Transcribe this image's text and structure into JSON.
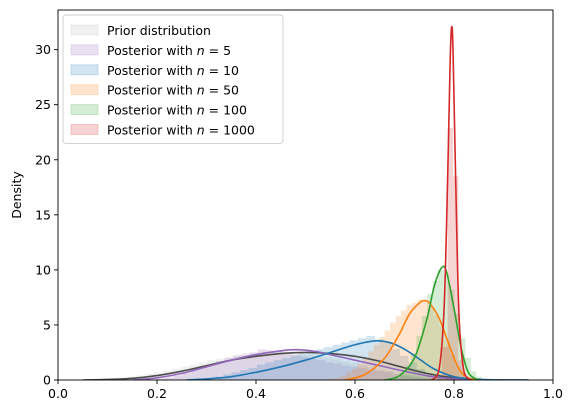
{
  "chart_data": {
    "type": "area",
    "title": "",
    "xlabel": "",
    "ylabel": "Density",
    "xlim": [
      0.0,
      1.0
    ],
    "ylim": [
      0,
      33.6
    ],
    "xticks": [
      0.0,
      0.2,
      0.4,
      0.6,
      0.8,
      1.0
    ],
    "xtick_labels": [
      "0.0",
      "0.2",
      "0.4",
      "0.6",
      "0.8",
      "1.0"
    ],
    "yticks": [
      0,
      5,
      10,
      15,
      20,
      25,
      30
    ],
    "ytick_labels": [
      "0",
      "5",
      "10",
      "15",
      "20",
      "25",
      "30"
    ],
    "grid": false,
    "legend_position": "top-left",
    "series": [
      {
        "name": "Prior distribution",
        "color": "#4d4d4d",
        "hist_color": "#b3b3b3",
        "histogram": {
          "start": 0.05,
          "width": 0.018,
          "values": [
            0.03,
            0.06,
            0.1,
            0.15,
            0.22,
            0.3,
            0.42,
            0.55,
            0.7,
            0.85,
            1.0,
            1.2,
            1.4,
            1.6,
            1.8,
            1.95,
            2.1,
            2.3,
            2.45,
            2.5,
            2.6,
            2.55,
            2.6,
            2.5,
            2.4,
            2.3,
            2.2,
            2.05,
            1.9,
            1.7,
            1.55,
            1.35,
            1.15,
            0.95,
            0.8,
            0.6,
            0.45,
            0.3,
            0.2,
            0.12,
            0.08,
            0.05,
            0.03,
            0.02,
            0.01,
            0.01,
            0.01,
            0.0,
            0.0
          ]
        },
        "kde": {
          "x": [
            0.05,
            0.1,
            0.15,
            0.2,
            0.25,
            0.3,
            0.35,
            0.4,
            0.45,
            0.5,
            0.55,
            0.6,
            0.65,
            0.7,
            0.75,
            0.8,
            0.85,
            0.9,
            0.95
          ],
          "y": [
            0.0,
            0.05,
            0.15,
            0.4,
            0.8,
            1.3,
            1.8,
            2.15,
            2.4,
            2.5,
            2.4,
            2.15,
            1.7,
            1.1,
            0.55,
            0.2,
            0.05,
            0.01,
            0.0
          ]
        }
      },
      {
        "name": "Posterior with n = 5",
        "name_prefix": "Posterior with ",
        "name_var": "n",
        "name_suffix": " = 5",
        "color": "#9467bd",
        "hist_color": "#9467bd",
        "histogram": {
          "start": 0.2,
          "width": 0.017,
          "values": [
            0.1,
            0.2,
            0.4,
            0.6,
            0.9,
            1.2,
            1.4,
            1.7,
            2.0,
            2.2,
            2.3,
            2.5,
            2.8,
            2.7,
            2.6,
            2.5,
            2.3,
            2.1,
            1.9,
            1.8,
            1.6,
            1.5,
            1.3,
            1.2,
            1.1,
            0.9,
            0.8,
            0.7,
            0.5,
            0.4,
            0.3,
            0.2,
            0.15,
            0.1,
            0.05
          ]
        },
        "kde": {
          "x": [
            0.15,
            0.2,
            0.25,
            0.3,
            0.35,
            0.4,
            0.45,
            0.48,
            0.52,
            0.55,
            0.6,
            0.65,
            0.7,
            0.75,
            0.8,
            0.85
          ],
          "y": [
            0.0,
            0.2,
            0.6,
            1.2,
            1.8,
            2.3,
            2.65,
            2.75,
            2.6,
            2.3,
            1.8,
            1.3,
            0.8,
            0.35,
            0.1,
            0.0
          ]
        }
      },
      {
        "name": "Posterior with n = 10",
        "name_prefix": "Posterior with ",
        "name_var": "n",
        "name_suffix": " = 10",
        "color": "#1f77b4",
        "hist_color": "#1f77b4",
        "histogram": {
          "start": 0.3,
          "width": 0.017,
          "values": [
            0.1,
            0.3,
            0.5,
            0.7,
            0.9,
            1.1,
            1.4,
            1.6,
            1.8,
            2.0,
            2.2,
            2.4,
            2.6,
            2.8,
            3.0,
            3.2,
            3.4,
            3.6,
            3.8,
            4.0,
            3.7,
            3.4,
            2.8,
            2.2,
            1.6,
            1.0,
            0.5,
            0.3,
            0.1
          ]
        },
        "kde": {
          "x": [
            0.26,
            0.3,
            0.35,
            0.4,
            0.45,
            0.5,
            0.55,
            0.6,
            0.64,
            0.67,
            0.7,
            0.73,
            0.76,
            0.8,
            0.85,
            0.9,
            0.95
          ],
          "y": [
            0.0,
            0.1,
            0.3,
            0.7,
            1.2,
            1.8,
            2.5,
            3.2,
            3.55,
            3.4,
            2.8,
            1.9,
            1.0,
            0.3,
            0.05,
            0.0,
            0.0
          ]
        }
      },
      {
        "name": "Posterior with n = 50",
        "name_prefix": "Posterior with ",
        "name_var": "n",
        "name_suffix": " = 50",
        "color": "#ff7f0e",
        "hist_color": "#ff7f0e",
        "histogram": {
          "start": 0.55,
          "width": 0.011,
          "values": [
            0.1,
            0.2,
            0.4,
            0.7,
            1.0,
            1.5,
            2.0,
            2.6,
            3.2,
            3.9,
            4.5,
            5.2,
            5.8,
            6.3,
            6.8,
            7.0,
            7.3,
            7.1,
            6.6,
            5.9,
            4.9,
            3.6,
            2.3,
            1.2,
            0.5,
            0.2
          ]
        },
        "kde": {
          "x": [
            0.58,
            0.62,
            0.66,
            0.69,
            0.71,
            0.73,
            0.74,
            0.75,
            0.77,
            0.79,
            0.81,
            0.83,
            0.85
          ],
          "y": [
            0.0,
            0.5,
            2.0,
            4.2,
            6.0,
            7.0,
            7.2,
            7.0,
            5.6,
            3.2,
            1.0,
            0.15,
            0.0
          ]
        }
      },
      {
        "name": "Posterior with n = 100",
        "name_prefix": "Posterior with ",
        "name_var": "n",
        "name_suffix": " = 100",
        "color": "#2ca02c",
        "hist_color": "#2ca02c",
        "histogram": {
          "start": 0.68,
          "width": 0.011,
          "values": [
            0.2,
            0.6,
            1.3,
            2.4,
            4.0,
            5.8,
            7.8,
            9.0,
            10.0,
            9.6,
            8.2,
            6.0,
            3.8,
            2.0,
            0.8,
            0.3
          ]
        },
        "kde": {
          "x": [
            0.66,
            0.69,
            0.72,
            0.745,
            0.76,
            0.775,
            0.785,
            0.8,
            0.815,
            0.83,
            0.85
          ],
          "y": [
            0.0,
            0.4,
            2.0,
            5.5,
            8.5,
            10.2,
            9.8,
            6.5,
            2.8,
            0.6,
            0.0
          ]
        }
      },
      {
        "name": "Posterior with n = 1000",
        "name_prefix": "Posterior with ",
        "name_var": "n",
        "name_suffix": " = 1000",
        "color": "#d62728",
        "hist_color": "#d62728",
        "histogram": {
          "start": 0.765,
          "width": 0.011,
          "values": [
            0.3,
            3.0,
            22.9,
            18.5,
            1.8,
            0.2
          ]
        },
        "kde": {
          "x": [
            0.755,
            0.77,
            0.78,
            0.787,
            0.792,
            0.795,
            0.798,
            0.803,
            0.81,
            0.82,
            0.835
          ],
          "y": [
            0.0,
            1.0,
            6.5,
            18.0,
            28.5,
            32.0,
            30.0,
            19.0,
            6.0,
            0.8,
            0.0
          ]
        }
      }
    ]
  }
}
